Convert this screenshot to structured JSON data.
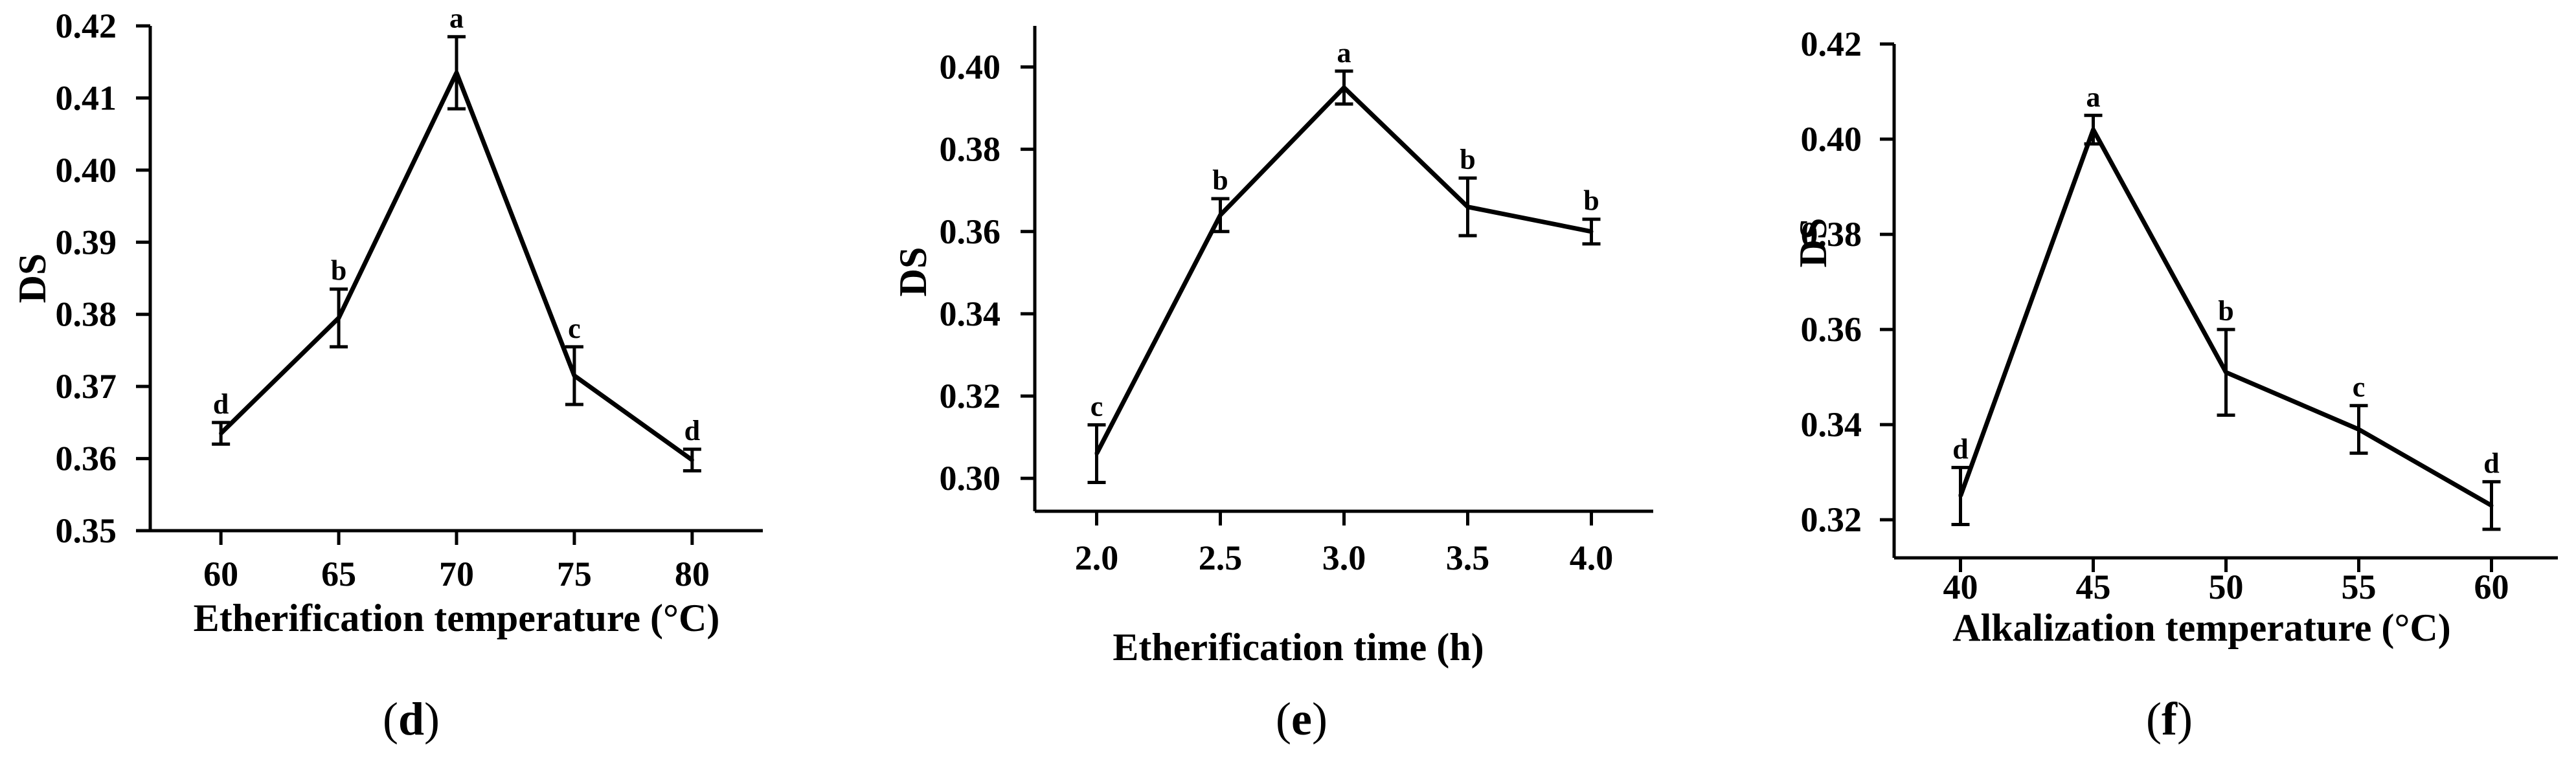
{
  "chart_data": [
    {
      "type": "line",
      "panel_label": "d",
      "xlabel": "Etherification temperature (°C)",
      "ylabel": "DS",
      "x": [
        60,
        65,
        70,
        75,
        80
      ],
      "x_tick_labels": [
        "60",
        "65",
        "70",
        "75",
        "80"
      ],
      "values": [
        0.3635,
        0.3795,
        0.4135,
        0.3715,
        0.3598
      ],
      "errors": [
        0.0015,
        0.004,
        0.005,
        0.004,
        0.0015
      ],
      "significance": [
        "d",
        "b",
        "a",
        "c",
        "d"
      ],
      "xlim": [
        57,
        83
      ],
      "ylim": [
        0.35,
        0.42
      ],
      "y_ticks": [
        0.35,
        0.36,
        0.37,
        0.38,
        0.39,
        0.4,
        0.41,
        0.42
      ],
      "y_tick_labels": [
        "0.35",
        "0.36",
        "0.37",
        "0.38",
        "0.39",
        "0.40",
        "0.41",
        "0.42"
      ],
      "grid": false
    },
    {
      "type": "line",
      "panel_label": "e",
      "xlabel": "Etherification time (h)",
      "ylabel": "DS",
      "x": [
        2.0,
        2.5,
        3.0,
        3.5,
        4.0
      ],
      "x_tick_labels": [
        "2.0",
        "2.5",
        "3.0",
        "3.5",
        "4.0"
      ],
      "values": [
        0.306,
        0.364,
        0.395,
        0.366,
        0.36
      ],
      "errors": [
        0.007,
        0.004,
        0.004,
        0.007,
        0.003
      ],
      "significance": [
        "c",
        "b",
        "a",
        "b",
        "b"
      ],
      "xlim": [
        1.75,
        4.25
      ],
      "ylim": [
        0.292,
        0.41
      ],
      "y_ticks": [
        0.3,
        0.32,
        0.34,
        0.36,
        0.38,
        0.4
      ],
      "y_tick_labels": [
        "0.30",
        "0.32",
        "0.34",
        "0.36",
        "0.38",
        "0.40"
      ],
      "grid": false
    },
    {
      "type": "line",
      "panel_label": "f",
      "xlabel": "Alkalization temperature (°C)",
      "ylabel": "DS",
      "x": [
        40,
        45,
        50,
        55,
        60
      ],
      "x_tick_labels": [
        "40",
        "45",
        "50",
        "55",
        "60"
      ],
      "values": [
        0.325,
        0.402,
        0.351,
        0.339,
        0.323
      ],
      "errors": [
        0.006,
        0.003,
        0.009,
        0.005,
        0.005
      ],
      "significance": [
        "d",
        "a",
        "b",
        "c",
        "d"
      ],
      "xlim": [
        37.5,
        62.5
      ],
      "ylim": [
        0.312,
        0.42
      ],
      "y_ticks": [
        0.32,
        0.34,
        0.36,
        0.38,
        0.4,
        0.42
      ],
      "y_tick_labels": [
        "0.32",
        "0.34",
        "0.36",
        "0.38",
        "0.40",
        "0.42"
      ],
      "grid": false
    }
  ]
}
